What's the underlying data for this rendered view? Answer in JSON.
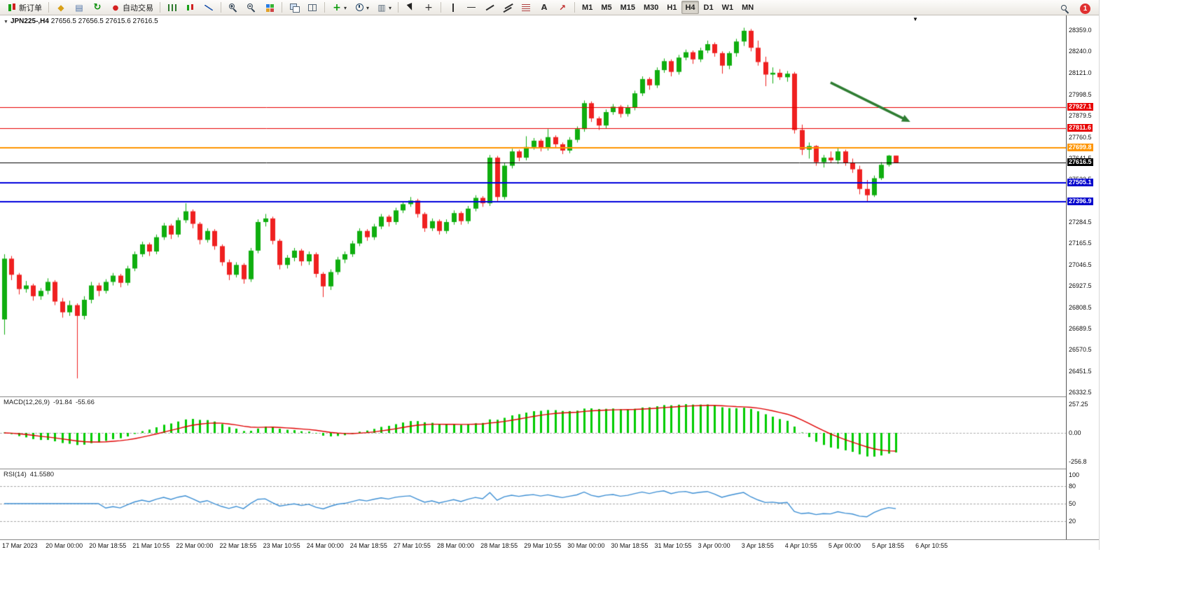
{
  "window": {
    "badge_count": "1"
  },
  "toolbar": {
    "groups": [
      {
        "name": "order",
        "buttons": [
          {
            "name": "new-order-button",
            "icon": "candles",
            "label": "新订单"
          }
        ]
      },
      {
        "name": "services",
        "buttons": [
          {
            "name": "market-button",
            "icon": "diamond"
          },
          {
            "name": "data-window-button",
            "icon": "layers"
          },
          {
            "name": "refresh-button",
            "icon": "refresh"
          },
          {
            "name": "auto-trading-button",
            "icon": "record-dot",
            "label": "自动交易"
          }
        ]
      },
      {
        "name": "chart-type",
        "buttons": [
          {
            "name": "bar-chart-button",
            "icon": "ohlc-bars"
          },
          {
            "name": "candlestick-chart-button",
            "icon": "candles2"
          },
          {
            "name": "line-chart-button",
            "icon": "line-chart"
          }
        ]
      },
      {
        "name": "zoom",
        "buttons": [
          {
            "name": "zoom-in-button",
            "icon": "zoom-in"
          },
          {
            "name": "zoom-out-button",
            "icon": "zoom-out"
          },
          {
            "name": "tile-windows-button",
            "icon": "tiles"
          }
        ]
      },
      {
        "name": "arrange",
        "buttons": [
          {
            "name": "cascade-windows-button",
            "icon": "cascade"
          },
          {
            "name": "tile-horizontal-button",
            "icon": "tile"
          }
        ]
      },
      {
        "name": "insert",
        "buttons": [
          {
            "name": "indicators-button",
            "icon": "indicator-plus",
            "caret": true
          },
          {
            "name": "periods-button",
            "icon": "clock",
            "caret": true
          },
          {
            "name": "templates-button",
            "icon": "template",
            "caret": true
          }
        ]
      },
      {
        "name": "pointer",
        "buttons": [
          {
            "name": "cursor-button",
            "icon": "cursor"
          },
          {
            "name": "crosshair-button",
            "icon": "crosshair"
          }
        ]
      },
      {
        "name": "objects",
        "buttons": [
          {
            "name": "vertical-line-button",
            "icon": "vline"
          },
          {
            "name": "horizontal-line-button",
            "icon": "hline"
          },
          {
            "name": "trendline-button",
            "icon": "trendline"
          },
          {
            "name": "channel-button",
            "icon": "channel"
          },
          {
            "name": "fibonacci-button",
            "icon": "fibo"
          },
          {
            "name": "text-label-button",
            "icon": "text"
          },
          {
            "name": "arrows-button",
            "icon": "arrow-mark"
          }
        ]
      },
      {
        "name": "timeframes",
        "buttons": [
          {
            "name": "timeframe-m1",
            "label": "M1"
          },
          {
            "name": "timeframe-m5",
            "label": "M5"
          },
          {
            "name": "timeframe-m15",
            "label": "M15"
          },
          {
            "name": "timeframe-m30",
            "label": "M30"
          },
          {
            "name": "timeframe-h1",
            "label": "H1"
          },
          {
            "name": "timeframe-h4",
            "label": "H4",
            "active": true
          },
          {
            "name": "timeframe-d1",
            "label": "D1"
          },
          {
            "name": "timeframe-w1",
            "label": "W1"
          },
          {
            "name": "timeframe-mn",
            "label": "MN"
          }
        ]
      }
    ]
  },
  "chart_data": {
    "type": "candlestick",
    "symbol_period": "JPN225-,H4",
    "ohlc_readout": "27656.5 27656.5 27615.6 27616.5",
    "price_range": [
      26309,
      28441
    ],
    "price_ticks": [
      "28359.0",
      "28240.0",
      "28121.0",
      "27998.5",
      "27879.5",
      "27760.5",
      "27641.5",
      "27522.5",
      "27403.5",
      "27284.5",
      "27165.5",
      "27046.5",
      "26927.5",
      "26808.5",
      "26689.5",
      "26570.5",
      "26451.5",
      "26332.5"
    ],
    "time_labels": [
      "17 Mar 2023",
      "20 Mar 00:00",
      "20 Mar 18:55",
      "21 Mar 10:55",
      "22 Mar 00:00",
      "22 Mar 18:55",
      "23 Mar 10:55",
      "24 Mar 00:00",
      "24 Mar 18:55",
      "27 Mar 10:55",
      "28 Mar 00:00",
      "28 Mar 18:55",
      "29 Mar 10:55",
      "30 Mar 00:00",
      "30 Mar 18:55",
      "31 Mar 10:55",
      "3 Apr 00:00",
      "3 Apr 18:55",
      "4 Apr 10:55",
      "5 Apr 00:00",
      "5 Apr 18:55",
      "6 Apr 10:55"
    ],
    "colors": {
      "up": "#0fae0f",
      "down": "#ef2020"
    },
    "hlines": [
      {
        "price": 27927.1,
        "color": "#e80000",
        "width": 1,
        "label": "27927.1",
        "label_bg": "#e80000"
      },
      {
        "price": 27811.6,
        "color": "#e80000",
        "width": 1,
        "label": "27811.6",
        "label_bg": "#e80000"
      },
      {
        "price": 27699.8,
        "color": "#ff9500",
        "width": 2,
        "label": "27699.8",
        "label_bg": "#ff9500"
      },
      {
        "price": 27616.5,
        "color": "#000000",
        "width": 1,
        "label": "27616.5",
        "label_bg": "#000000"
      },
      {
        "price": 27505.1,
        "color": "#0000dd",
        "width": 2,
        "label": "27505.1",
        "label_bg": "#0000cc"
      },
      {
        "price": 27396.9,
        "color": "#0000dd",
        "width": 2,
        "label": "27396.9",
        "label_bg": "#0000cc"
      }
    ],
    "arrow": {
      "from_index": 114,
      "from_price": 28065,
      "to_index": 125,
      "to_price": 27845,
      "color": "#2e7d32"
    },
    "candles": [
      [
        26740,
        27105,
        26655,
        27080
      ],
      [
        27080,
        27095,
        26960,
        26990
      ],
      [
        26990,
        27000,
        26880,
        26910
      ],
      [
        26910,
        26955,
        26890,
        26930
      ],
      [
        26930,
        26940,
        26845,
        26870
      ],
      [
        26870,
        26915,
        26850,
        26900
      ],
      [
        26900,
        26970,
        26880,
        26950
      ],
      [
        26950,
        26960,
        26820,
        26840
      ],
      [
        26840,
        26860,
        26750,
        26780
      ],
      [
        26780,
        26845,
        26760,
        26820
      ],
      [
        26820,
        26830,
        26410,
        26760
      ],
      [
        26760,
        26870,
        26740,
        26850
      ],
      [
        26850,
        26950,
        26830,
        26930
      ],
      [
        26930,
        26945,
        26870,
        26900
      ],
      [
        26900,
        26965,
        26885,
        26950
      ],
      [
        26950,
        27000,
        26930,
        26985
      ],
      [
        26985,
        26995,
        26920,
        26945
      ],
      [
        26945,
        27040,
        26930,
        27025
      ],
      [
        27025,
        27120,
        27010,
        27105
      ],
      [
        27105,
        27175,
        27090,
        27160
      ],
      [
        27160,
        27170,
        27095,
        27120
      ],
      [
        27120,
        27215,
        27105,
        27200
      ],
      [
        27200,
        27280,
        27185,
        27265
      ],
      [
        27265,
        27275,
        27190,
        27215
      ],
      [
        27215,
        27310,
        27200,
        27295
      ],
      [
        27295,
        27390,
        27280,
        27345
      ],
      [
        27345,
        27355,
        27250,
        27275
      ],
      [
        27275,
        27285,
        27160,
        27185
      ],
      [
        27185,
        27250,
        27170,
        27235
      ],
      [
        27235,
        27245,
        27130,
        27150
      ],
      [
        27150,
        27160,
        27040,
        27060
      ],
      [
        27060,
        27075,
        26960,
        26990
      ],
      [
        26990,
        27060,
        26975,
        27045
      ],
      [
        27045,
        27055,
        26940,
        26965
      ],
      [
        26965,
        27140,
        26950,
        27125
      ],
      [
        27125,
        27300,
        27110,
        27285
      ],
      [
        27285,
        27330,
        27260,
        27305
      ],
      [
        27305,
        27315,
        27160,
        27180
      ],
      [
        27180,
        27190,
        27020,
        27045
      ],
      [
        27045,
        27100,
        27025,
        27085
      ],
      [
        27085,
        27140,
        27065,
        27125
      ],
      [
        27125,
        27135,
        27040,
        27065
      ],
      [
        27065,
        27120,
        27045,
        27105
      ],
      [
        27105,
        27115,
        26975,
        26995
      ],
      [
        26995,
        27005,
        26865,
        26925
      ],
      [
        26925,
        27020,
        26905,
        27005
      ],
      [
        27005,
        27090,
        26990,
        27075
      ],
      [
        27075,
        27120,
        27055,
        27105
      ],
      [
        27105,
        27180,
        27090,
        27165
      ],
      [
        27165,
        27250,
        27150,
        27235
      ],
      [
        27235,
        27245,
        27180,
        27200
      ],
      [
        27200,
        27275,
        27185,
        27260
      ],
      [
        27260,
        27330,
        27245,
        27315
      ],
      [
        27315,
        27325,
        27260,
        27285
      ],
      [
        27285,
        27365,
        27270,
        27350
      ],
      [
        27350,
        27400,
        27335,
        27385
      ],
      [
        27385,
        27425,
        27370,
        27405
      ],
      [
        27405,
        27415,
        27310,
        27330
      ],
      [
        27330,
        27340,
        27230,
        27250
      ],
      [
        27250,
        27305,
        27235,
        27290
      ],
      [
        27290,
        27300,
        27215,
        27235
      ],
      [
        27235,
        27300,
        27220,
        27285
      ],
      [
        27285,
        27350,
        27270,
        27335
      ],
      [
        27335,
        27345,
        27270,
        27290
      ],
      [
        27290,
        27375,
        27275,
        27360
      ],
      [
        27360,
        27435,
        27345,
        27420
      ],
      [
        27420,
        27430,
        27370,
        27390
      ],
      [
        27390,
        27660,
        27375,
        27645
      ],
      [
        27645,
        27655,
        27395,
        27425
      ],
      [
        27425,
        27615,
        27410,
        27600
      ],
      [
        27600,
        27695,
        27585,
        27680
      ],
      [
        27680,
        27690,
        27625,
        27645
      ],
      [
        27645,
        27765,
        27630,
        27705
      ],
      [
        27705,
        27755,
        27690,
        27740
      ],
      [
        27740,
        27750,
        27680,
        27700
      ],
      [
        27700,
        27805,
        27685,
        27760
      ],
      [
        27760,
        27770,
        27700,
        27720
      ],
      [
        27720,
        27730,
        27665,
        27685
      ],
      [
        27685,
        27760,
        27670,
        27745
      ],
      [
        27745,
        27820,
        27730,
        27805
      ],
      [
        27805,
        27965,
        27790,
        27950
      ],
      [
        27950,
        27960,
        27845,
        27865
      ],
      [
        27865,
        27875,
        27800,
        27825
      ],
      [
        27825,
        27915,
        27810,
        27900
      ],
      [
        27900,
        27945,
        27885,
        27930
      ],
      [
        27930,
        27940,
        27870,
        27890
      ],
      [
        27890,
        27940,
        27875,
        27925
      ],
      [
        27925,
        28020,
        27910,
        28005
      ],
      [
        28005,
        28100,
        27990,
        28085
      ],
      [
        28085,
        28095,
        28025,
        28050
      ],
      [
        28050,
        28150,
        28035,
        28135
      ],
      [
        28135,
        28200,
        28120,
        28185
      ],
      [
        28185,
        28195,
        28100,
        28125
      ],
      [
        28125,
        28220,
        28110,
        28205
      ],
      [
        28205,
        28250,
        28190,
        28235
      ],
      [
        28235,
        28245,
        28170,
        28195
      ],
      [
        28195,
        28260,
        28180,
        28245
      ],
      [
        28245,
        28300,
        28230,
        28280
      ],
      [
        28280,
        28290,
        28210,
        28230
      ],
      [
        28230,
        28240,
        28115,
        28160
      ],
      [
        28160,
        28240,
        28140,
        28230
      ],
      [
        28230,
        28310,
        28210,
        28295
      ],
      [
        28295,
        28372,
        28270,
        28355
      ],
      [
        28355,
        28365,
        28240,
        28260
      ],
      [
        28260,
        28300,
        28160,
        28180
      ],
      [
        28180,
        28210,
        28045,
        28110
      ],
      [
        28110,
        28150,
        28060,
        28120
      ],
      [
        28120,
        28140,
        28080,
        28095
      ],
      [
        28095,
        28130,
        28070,
        28115
      ],
      [
        28115,
        28125,
        27780,
        27800
      ],
      [
        27800,
        27830,
        27660,
        27690
      ],
      [
        27690,
        27730,
        27640,
        27710
      ],
      [
        27710,
        27715,
        27600,
        27620
      ],
      [
        27620,
        27660,
        27590,
        27645
      ],
      [
        27645,
        27680,
        27615,
        27630
      ],
      [
        27630,
        27700,
        27610,
        27680
      ],
      [
        27680,
        27690,
        27600,
        27615
      ],
      [
        27615,
        27640,
        27560,
        27580
      ],
      [
        27580,
        27600,
        27440,
        27470
      ],
      [
        27470,
        27520,
        27400,
        27435
      ],
      [
        27435,
        27545,
        27425,
        27530
      ],
      [
        27530,
        27620,
        27520,
        27605
      ],
      [
        27605,
        27660,
        27595,
        27656.5
      ],
      [
        27656.5,
        27656.5,
        27615.6,
        27616.5
      ]
    ]
  },
  "indicators": {
    "macd": {
      "label": "MACD(12,26,9)",
      "value_main": "-91.84",
      "value_signal": "-55.66",
      "ticks": [
        "257.25",
        "0.00",
        "-256.8"
      ],
      "fast": 12,
      "slow": 26,
      "signal": 9,
      "histogram_color": "#00cc00",
      "signal_color": "#e00000"
    },
    "rsi": {
      "label": "RSI(14)",
      "value": "41.5580",
      "period": 14,
      "ticks": [
        100,
        80,
        50,
        20
      ],
      "levels": [
        80,
        50,
        20
      ],
      "line_color": "#3d8fd4"
    }
  }
}
